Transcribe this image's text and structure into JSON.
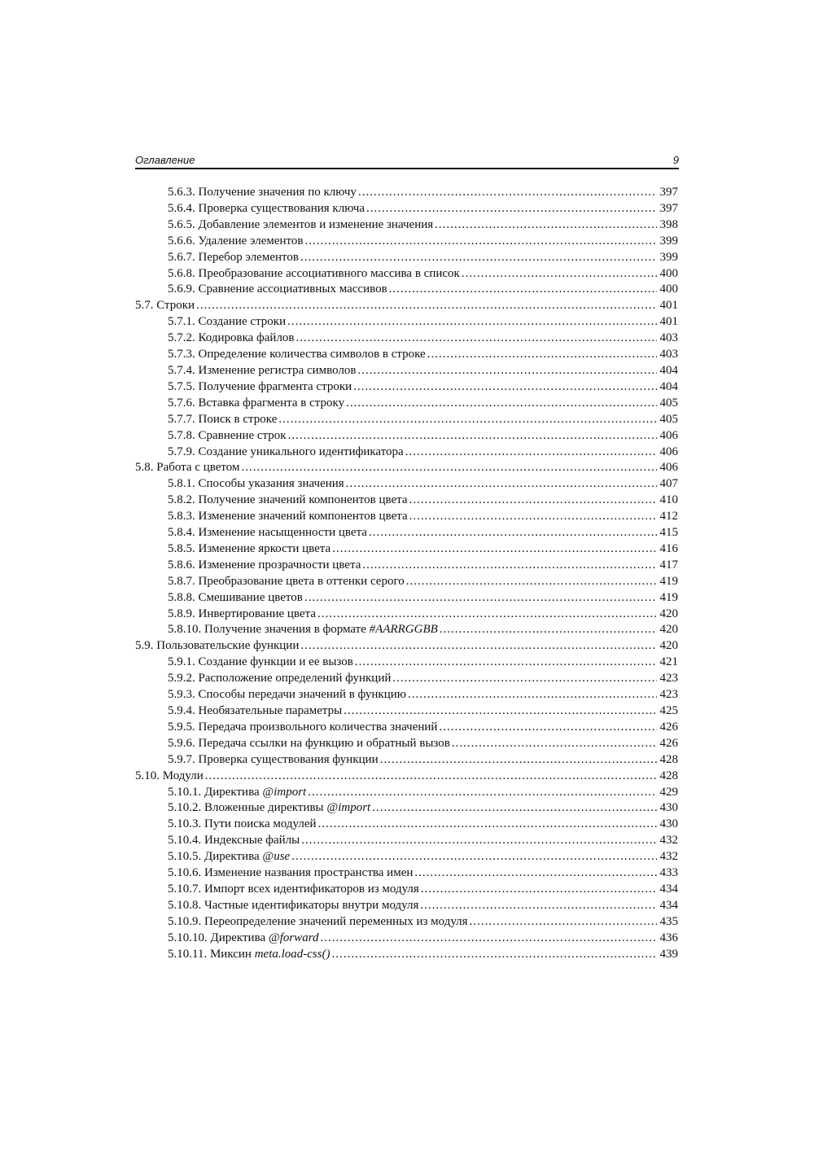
{
  "header": {
    "title": "Оглавление",
    "page": "9"
  },
  "entries": [
    {
      "level": 2,
      "num": "5.6.3.",
      "title": "Получение значения по ключу",
      "page": "397"
    },
    {
      "level": 2,
      "num": "5.6.4.",
      "title": "Проверка существования ключа",
      "page": "397"
    },
    {
      "level": 2,
      "num": "5.6.5.",
      "title": "Добавление элементов и изменение значения",
      "page": "398"
    },
    {
      "level": 2,
      "num": "5.6.6.",
      "title": "Удаление элементов",
      "page": "399"
    },
    {
      "level": 2,
      "num": "5.6.7.",
      "title": "Перебор элементов",
      "page": "399"
    },
    {
      "level": 2,
      "num": "5.6.8.",
      "title": "Преобразование ассоциативного массива в список",
      "page": "400"
    },
    {
      "level": 2,
      "num": "5.6.9.",
      "title": "Сравнение ассоциативных массивов",
      "page": "400"
    },
    {
      "level": 1,
      "num": "5.7.",
      "title": "Строки",
      "page": "401"
    },
    {
      "level": 2,
      "num": "5.7.1.",
      "title": "Создание строки",
      "page": "401"
    },
    {
      "level": 2,
      "num": "5.7.2.",
      "title": "Кодировка файлов",
      "page": "403"
    },
    {
      "level": 2,
      "num": "5.7.3.",
      "title": "Определение количества символов в строке",
      "page": "403"
    },
    {
      "level": 2,
      "num": "5.7.4.",
      "title": "Изменение регистра символов",
      "page": "404"
    },
    {
      "level": 2,
      "num": "5.7.5.",
      "title": "Получение фрагмента строки",
      "page": "404"
    },
    {
      "level": 2,
      "num": "5.7.6.",
      "title": "Вставка фрагмента в строку",
      "page": "405"
    },
    {
      "level": 2,
      "num": "5.7.7.",
      "title": "Поиск в строке",
      "page": "405"
    },
    {
      "level": 2,
      "num": "5.7.8.",
      "title": "Сравнение строк",
      "page": "406"
    },
    {
      "level": 2,
      "num": "5.7.9.",
      "title": "Создание уникального идентификатора",
      "page": "406"
    },
    {
      "level": 1,
      "num": "5.8.",
      "title": "Работа с цветом",
      "page": "406"
    },
    {
      "level": 2,
      "num": "5.8.1.",
      "title": "Способы указания значения",
      "page": "407"
    },
    {
      "level": 2,
      "num": "5.8.2.",
      "title": "Получение значений компонентов цвета",
      "page": "410"
    },
    {
      "level": 2,
      "num": "5.8.3.",
      "title": "Изменение значений компонентов цвета",
      "page": "412"
    },
    {
      "level": 2,
      "num": "5.8.4.",
      "title": "Изменение насыщенности цвета",
      "page": "415"
    },
    {
      "level": 2,
      "num": "5.8.5.",
      "title": "Изменение яркости цвета",
      "page": "416"
    },
    {
      "level": 2,
      "num": "5.8.6.",
      "title": "Изменение прозрачности цвета",
      "page": "417"
    },
    {
      "level": 2,
      "num": "5.8.7.",
      "title": "Преобразование цвета в оттенки серого",
      "page": "419"
    },
    {
      "level": 2,
      "num": "5.8.8.",
      "title": "Смешивание цветов",
      "page": "419"
    },
    {
      "level": 2,
      "num": "5.8.9.",
      "title": "Инвертирование цвета",
      "page": "420"
    },
    {
      "level": 2,
      "num": "5.8.10.",
      "title": "Получение значения в формате",
      "code": "#AARRGGBB",
      "page": "420"
    },
    {
      "level": 1,
      "num": "5.9.",
      "title": "Пользовательские функции",
      "page": "420"
    },
    {
      "level": 2,
      "num": "5.9.1.",
      "title": "Создание функции и ее вызов",
      "page": "421"
    },
    {
      "level": 2,
      "num": "5.9.2.",
      "title": "Расположение определений функций",
      "page": "423"
    },
    {
      "level": 2,
      "num": "5.9.3.",
      "title": "Способы передачи значений в функцию",
      "page": "423"
    },
    {
      "level": 2,
      "num": "5.9.4.",
      "title": "Необязательные параметры",
      "page": "425"
    },
    {
      "level": 2,
      "num": "5.9.5.",
      "title": "Передача произвольного количества значений",
      "page": "426"
    },
    {
      "level": 2,
      "num": "5.9.6.",
      "title": "Передача ссылки на функцию и обратный вызов",
      "page": "426"
    },
    {
      "level": 2,
      "num": "5.9.7.",
      "title": "Проверка существования функции",
      "page": "428"
    },
    {
      "level": 1,
      "num": "5.10.",
      "title": "Модули",
      "page": "428"
    },
    {
      "level": 2,
      "num": "5.10.1.",
      "title": "Директива",
      "code": "@import",
      "page": "429"
    },
    {
      "level": 2,
      "num": "5.10.2.",
      "title": "Вложенные директивы",
      "code": "@import",
      "page": "430"
    },
    {
      "level": 2,
      "num": "5.10.3.",
      "title": "Пути поиска модулей",
      "page": "430"
    },
    {
      "level": 2,
      "num": "5.10.4.",
      "title": "Индексные файлы",
      "page": "432"
    },
    {
      "level": 2,
      "num": "5.10.5.",
      "title": "Директива",
      "code": "@use",
      "page": "432"
    },
    {
      "level": 2,
      "num": "5.10.6.",
      "title": "Изменение названия пространства имен",
      "page": "433"
    },
    {
      "level": 2,
      "num": "5.10.7.",
      "title": "Импорт всех идентификаторов из модуля",
      "page": "434"
    },
    {
      "level": 2,
      "num": "5.10.8.",
      "title": "Частные идентификаторы внутри модуля",
      "page": "434"
    },
    {
      "level": 2,
      "num": "5.10.9.",
      "title": "Переопределение значений переменных из модуля",
      "page": "435"
    },
    {
      "level": 2,
      "num": "5.10.10.",
      "title": "Директива",
      "code": "@forward",
      "page": "436"
    },
    {
      "level": 2,
      "num": "5.10.11.",
      "title": "Миксин",
      "code": "meta.load-css()",
      "page": "439"
    }
  ]
}
